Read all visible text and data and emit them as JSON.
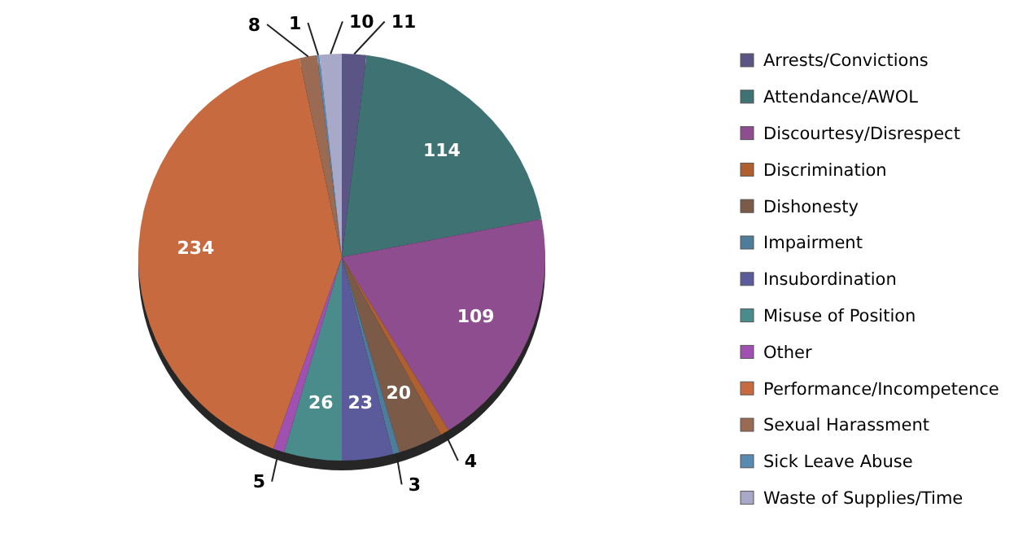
{
  "chart_data": {
    "type": "pie",
    "categories": [
      "Arrests/Convictions",
      "Attendance/AWOL",
      "Discourtesy/Disrespect",
      "Discrimination",
      "Dishonesty",
      "Impairment",
      "Insubordination",
      "Misuse of Position",
      "Other",
      "Performance/Incompetence",
      "Sexual Harassment",
      "Sick Leave Abuse",
      "Waste of Supplies/Time"
    ],
    "values": [
      11,
      114,
      109,
      4,
      20,
      3,
      23,
      26,
      5,
      234,
      8,
      1,
      10
    ],
    "colors": [
      "#5b5586",
      "#3f7272",
      "#8e4d8e",
      "#b0602e",
      "#7b5a48",
      "#4d7d9a",
      "#5b5a9a",
      "#4a8c8c",
      "#a050b0",
      "#c86a40",
      "#9a6a52",
      "#5a8ab0",
      "#a8a8c8"
    ],
    "data_labels": true,
    "legend": "right"
  }
}
